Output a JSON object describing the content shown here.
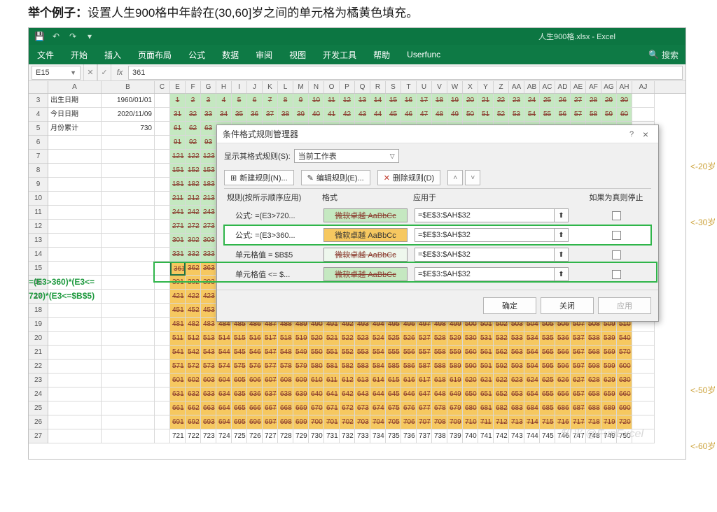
{
  "page": {
    "title_bold": "举个例子：",
    "title_rest": "设置人生900格中年龄在(30,60]岁之间的单元格为橘黄色填充。"
  },
  "window_title": "人生900格.xlsx - Excel",
  "ribbon": {
    "tabs": [
      "文件",
      "开始",
      "插入",
      "页面布局",
      "公式",
      "数据",
      "审阅",
      "视图",
      "开发工具",
      "帮助",
      "Userfunc"
    ],
    "search_label": "搜索"
  },
  "namebox": "E15",
  "formula": "361",
  "cols": [
    "A",
    "B",
    "C",
    "E",
    "F",
    "G",
    "H",
    "I",
    "J",
    "K",
    "L",
    "M",
    "N",
    "O",
    "P",
    "Q",
    "R",
    "S",
    "T",
    "U",
    "V",
    "W",
    "X",
    "Y",
    "Z",
    "AA",
    "AB",
    "AC",
    "AD",
    "AE",
    "AF",
    "AG",
    "AH",
    "AJ"
  ],
  "row_nums": [
    3,
    4,
    5,
    6,
    7,
    8,
    9,
    10,
    11,
    12,
    13,
    14,
    15,
    16,
    17,
    18,
    19,
    20,
    21,
    22,
    23,
    24,
    25,
    26,
    27
  ],
  "labels": {
    "a3": "出生日期",
    "b3": "1960/01/01",
    "a4": "今日日期",
    "b4": "2020/11/09",
    "a5": "月份累计",
    "b5": "730"
  },
  "grid": {
    "start": 1,
    "per_row": 30,
    "rows": 25,
    "green_max": 360,
    "yellow_max": 720,
    "plain_max": 900
  },
  "annotations": {
    "formula1": "=(E3>360)*(E3<=",
    "formula2": "720)*(E3<=$B$5)",
    "a20": "<-20岁",
    "a30": "<-30岁",
    "a50": "<-50岁",
    "a60": "<-60岁"
  },
  "dialog": {
    "title": "条件格式规则管理器",
    "show_label": "显示其格式规则(S):",
    "show_value": "当前工作表",
    "new_btn": "新建规则(N)...",
    "edit_btn": "编辑规则(E)...",
    "del_btn": "删除规则(D)",
    "head": {
      "c1": "规则(按所示顺序应用)",
      "c2": "格式",
      "c3": "应用于",
      "c4": "如果为真则停止"
    },
    "rules": [
      {
        "name": "公式: =(E3>720...",
        "fmt": "green",
        "preview": "微软卓越  AaBbCc",
        "range": "=$E$3:$AH$32"
      },
      {
        "name": "公式: =(E3>360...",
        "fmt": "yellow",
        "preview": "微软卓越  AaBbCc",
        "range": "=$E$3:$AH$32"
      },
      {
        "name": "单元格值 = $B$5",
        "fmt": "pale",
        "preview": "微软卓越  AaBbCc",
        "range": "=$E$3:$AH$32"
      },
      {
        "name": "单元格值 <= $...",
        "fmt": "green",
        "preview": "微软卓越  AaBbCc",
        "range": "=$E$3:$AH$32"
      }
    ],
    "ok": "确定",
    "close": "关闭",
    "apply": "应用"
  },
  "watermark": "知乎 @FunExcel"
}
